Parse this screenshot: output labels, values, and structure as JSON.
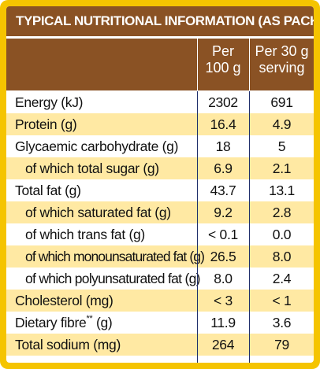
{
  "title": "TYPICAL NUTRITIONAL INFORMATION (AS PACKED)",
  "columns": {
    "per100_line1": "Per",
    "per100_line2": "100 g",
    "serving_line1": "Per 30 g",
    "serving_line2": "serving"
  },
  "rows": [
    {
      "label": "Energy (kJ)",
      "indent": false,
      "per100": "2302",
      "serving": "691"
    },
    {
      "label": "Protein (g)",
      "indent": false,
      "per100": "16.4",
      "serving": "4.9"
    },
    {
      "label": "Glycaemic carbohydrate (g)",
      "indent": false,
      "per100": "18",
      "serving": "5"
    },
    {
      "label": "of which total sugar (g)",
      "indent": true,
      "per100": "6.9",
      "serving": "2.1"
    },
    {
      "label": "Total fat (g)",
      "indent": false,
      "per100": "43.7",
      "serving": "13.1"
    },
    {
      "label": "of which saturated fat (g)",
      "indent": true,
      "per100": "9.2",
      "serving": "2.8"
    },
    {
      "label": "of which trans fat (g)",
      "indent": true,
      "per100": "< 0.1",
      "serving": "0.0"
    },
    {
      "label": "of which monounsaturated fat (g)",
      "indent": true,
      "per100": "26.5",
      "serving": "8.0"
    },
    {
      "label": "of which polyunsaturated fat (g)",
      "indent": true,
      "per100": "8.0",
      "serving": "2.4"
    },
    {
      "label": "Cholesterol (mg)",
      "indent": false,
      "per100": "< 3",
      "serving": "< 1"
    },
    {
      "label": "Dietary fibre",
      "label_suffix": "**",
      "label_unit": " (g)",
      "indent": false,
      "per100": "11.9",
      "serving": "3.6"
    },
    {
      "label": "Total sodium (mg)",
      "indent": false,
      "per100": "264",
      "serving": "79"
    }
  ],
  "colors": {
    "frame": "#f5c400",
    "header": "#8a5224",
    "stripe": "#ffe9a3",
    "divider": "#1f2f6b"
  }
}
